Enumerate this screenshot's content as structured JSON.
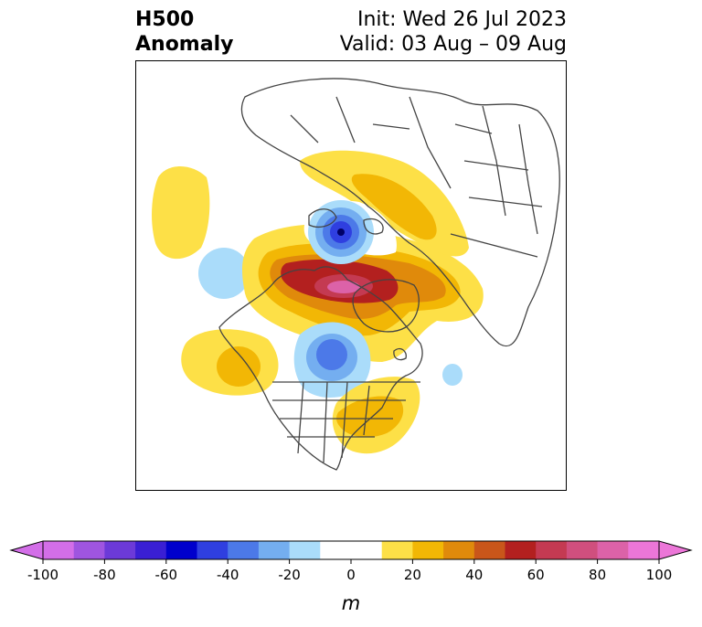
{
  "title": {
    "left_line1": "H500",
    "left_line2": "Anomaly",
    "right_line1": "Init: Wed 26 Jul 2023",
    "right_line2": "Valid: 03 Aug – 09 Aug"
  },
  "colorbar": {
    "unit_label": "m",
    "min": -100,
    "max": 100,
    "step": 10,
    "tick_labels": [
      "-100",
      "-80",
      "-60",
      "-40",
      "-20",
      "0",
      "20",
      "40",
      "60",
      "80",
      "100"
    ],
    "colors": [
      "#d36ee8",
      "#9f55e0",
      "#6c3ad8",
      "#3a1fd4",
      "#0000cc",
      "#2f3fe0",
      "#4c79e8",
      "#74aef0",
      "#aadcfa",
      "#ffffff",
      "#ffffff",
      "#fde047",
      "#f2b705",
      "#e08a0b",
      "#c9561a",
      "#b3201f",
      "#c43a52",
      "#d04f7e",
      "#dc62a8",
      "#ec76d8"
    ],
    "under_color": "#d36ee8",
    "over_color": "#ec76d8"
  },
  "legend": {
    "positive_anomaly_color": "#b3201f",
    "negative_anomaly_color": "#0000cc"
  }
}
